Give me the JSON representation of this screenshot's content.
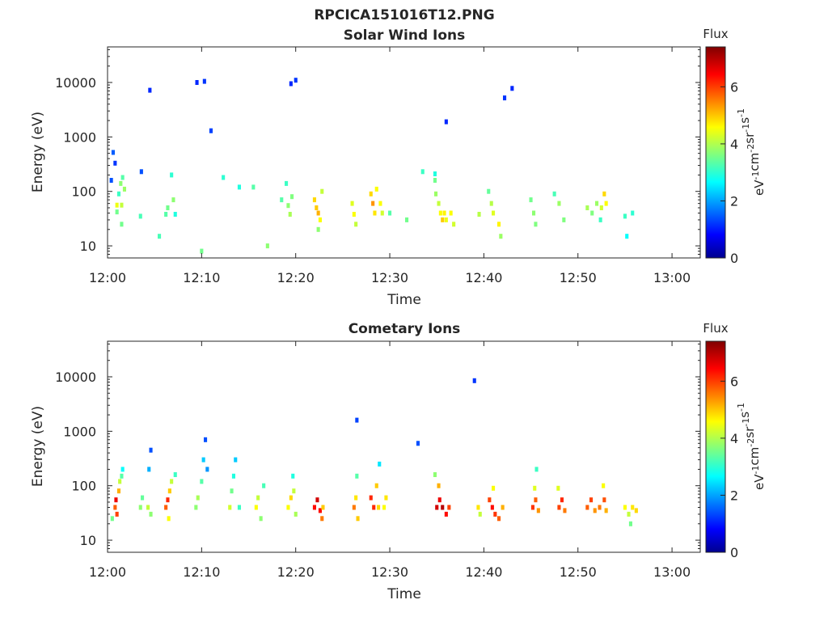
{
  "figure": {
    "title": "RPCICA151016T12.PNG"
  },
  "colorbar": {
    "label": "Flux",
    "unit_base": "eV",
    "unit_parts": [
      {
        "b": "eV",
        "e": "-1"
      },
      {
        "b": "cm",
        "e": "-2"
      },
      {
        "b": "sr",
        "e": "-1"
      },
      {
        "b": "s",
        "e": "-1"
      }
    ],
    "range": [
      0,
      7.4
    ],
    "ticks": [
      "0",
      "2",
      "4",
      "6"
    ],
    "colormap": "jet"
  },
  "chart_data": [
    {
      "type": "heatmap",
      "title": "Solar Wind Ions",
      "xlabel": "Time",
      "ylabel": "Energy (eV)",
      "x_ticks": [
        "12:00",
        "12:10",
        "12:20",
        "12:30",
        "12:40",
        "12:50",
        "13:00"
      ],
      "x_range_min": [
        0,
        63
      ],
      "y_ticks": [
        "10",
        "100",
        "1000",
        "10000"
      ],
      "y_scale": "log",
      "y_range": [
        6,
        45000
      ],
      "cells": [
        [
          1.0,
          56,
          4.5
        ],
        [
          1.0,
          42,
          3.6
        ],
        [
          1.2,
          90,
          3.2
        ],
        [
          1.4,
          140,
          3.8
        ],
        [
          1.5,
          56,
          4.2
        ],
        [
          1.5,
          25,
          3.6
        ],
        [
          1.6,
          180,
          3.4
        ],
        [
          1.8,
          110,
          3.9
        ],
        [
          0.4,
          160,
          1.5
        ],
        [
          0.6,
          520,
          1.6
        ],
        [
          0.8,
          330,
          1.3
        ],
        [
          3.5,
          35,
          3.3
        ],
        [
          3.6,
          230,
          1.5
        ],
        [
          6.2,
          38,
          3.4
        ],
        [
          6.4,
          50,
          3.6
        ],
        [
          6.8,
          200,
          3.1
        ],
        [
          7.0,
          70,
          3.8
        ],
        [
          7.2,
          38,
          3.0
        ],
        [
          5.5,
          15,
          3.3
        ],
        [
          10.0,
          8,
          3.6
        ],
        [
          11.0,
          1300,
          1.4
        ],
        [
          12.3,
          180,
          3.1
        ],
        [
          14.0,
          120,
          3.0
        ],
        [
          15.5,
          120,
          3.4
        ],
        [
          17.0,
          10,
          3.8
        ],
        [
          18.5,
          70,
          3.4
        ],
        [
          19.0,
          140,
          3.2
        ],
        [
          19.2,
          55,
          3.8
        ],
        [
          19.4,
          38,
          4.0
        ],
        [
          19.6,
          80,
          3.7
        ],
        [
          22.0,
          70,
          4.9
        ],
        [
          22.2,
          50,
          5.0
        ],
        [
          22.4,
          40,
          5.2
        ],
        [
          22.6,
          30,
          4.6
        ],
        [
          22.8,
          100,
          4.2
        ],
        [
          22.4,
          20,
          3.8
        ],
        [
          26.0,
          60,
          4.4
        ],
        [
          26.2,
          38,
          4.6
        ],
        [
          26.4,
          25,
          4.2
        ],
        [
          28.0,
          90,
          4.9
        ],
        [
          28.2,
          60,
          5.4
        ],
        [
          28.4,
          40,
          4.8
        ],
        [
          28.6,
          110,
          4.6
        ],
        [
          29.0,
          60,
          4.6
        ],
        [
          29.2,
          40,
          4.3
        ],
        [
          30.0,
          40,
          3.4
        ],
        [
          31.8,
          30,
          3.6
        ],
        [
          34.8,
          160,
          3.6
        ],
        [
          34.9,
          90,
          3.9
        ],
        [
          35.2,
          60,
          4.2
        ],
        [
          35.4,
          40,
          4.6
        ],
        [
          35.6,
          30,
          5.0
        ],
        [
          35.8,
          40,
          4.7
        ],
        [
          36.0,
          30,
          4.5
        ],
        [
          36.5,
          40,
          4.6
        ],
        [
          36.8,
          25,
          4.3
        ],
        [
          39.5,
          38,
          4.1
        ],
        [
          40.5,
          100,
          3.5
        ],
        [
          40.8,
          60,
          4.1
        ],
        [
          41.0,
          40,
          4.4
        ],
        [
          41.6,
          25,
          4.7
        ],
        [
          41.8,
          15,
          3.9
        ],
        [
          45.0,
          70,
          3.6
        ],
        [
          45.3,
          40,
          3.8
        ],
        [
          45.5,
          25,
          3.7
        ],
        [
          47.5,
          90,
          3.3
        ],
        [
          48.0,
          60,
          3.9
        ],
        [
          48.5,
          30,
          3.7
        ],
        [
          51.0,
          50,
          4.0
        ],
        [
          51.5,
          40,
          3.7
        ],
        [
          52.0,
          60,
          3.9
        ],
        [
          52.5,
          50,
          4.3
        ],
        [
          52.8,
          90,
          4.9
        ],
        [
          53.0,
          60,
          4.6
        ],
        [
          52.4,
          30,
          3.2
        ],
        [
          55.0,
          35,
          3.2
        ],
        [
          55.2,
          15,
          2.8
        ],
        [
          55.8,
          40,
          3.1
        ],
        [
          33.5,
          230,
          3.2
        ],
        [
          34.8,
          210,
          3.0
        ],
        [
          4.5,
          7200,
          1.2
        ],
        [
          9.5,
          10000,
          1.2
        ],
        [
          10.3,
          10500,
          1.3
        ],
        [
          19.5,
          9500,
          1.2
        ],
        [
          20.0,
          11000,
          1.3
        ],
        [
          43.0,
          7800,
          1.2
        ],
        [
          42.2,
          5200,
          1.3
        ],
        [
          36.0,
          1900,
          1.2
        ]
      ]
    },
    {
      "type": "heatmap",
      "title": "Cometary Ions",
      "xlabel": "Time",
      "ylabel": "Energy (eV)",
      "x_ticks": [
        "12:00",
        "12:10",
        "12:20",
        "12:30",
        "12:40",
        "12:50",
        "13:00"
      ],
      "x_range_min": [
        0,
        63
      ],
      "y_ticks": [
        "10",
        "100",
        "1000",
        "10000"
      ],
      "y_scale": "log",
      "y_range": [
        6,
        45000
      ],
      "cells": [
        [
          0.8,
          40,
          5.8
        ],
        [
          0.9,
          55,
          6.6
        ],
        [
          1.0,
          30,
          6.0
        ],
        [
          1.2,
          80,
          5.2
        ],
        [
          1.3,
          120,
          4.2
        ],
        [
          1.5,
          150,
          3.4
        ],
        [
          1.6,
          200,
          2.8
        ],
        [
          0.5,
          25,
          3.6
        ],
        [
          3.5,
          40,
          3.8
        ],
        [
          3.7,
          60,
          3.5
        ],
        [
          4.3,
          40,
          4.2
        ],
        [
          4.6,
          30,
          3.8
        ],
        [
          4.4,
          200,
          2.2
        ],
        [
          4.6,
          450,
          1.5
        ],
        [
          6.2,
          40,
          5.8
        ],
        [
          6.4,
          55,
          6.2
        ],
        [
          6.6,
          80,
          5.0
        ],
        [
          6.8,
          120,
          4.2
        ],
        [
          6.5,
          25,
          4.6
        ],
        [
          7.2,
          160,
          3.2
        ],
        [
          9.4,
          40,
          3.8
        ],
        [
          9.6,
          60,
          4.0
        ],
        [
          10.0,
          120,
          3.4
        ],
        [
          10.2,
          300,
          2.4
        ],
        [
          10.4,
          700,
          1.5
        ],
        [
          10.6,
          200,
          2.0
        ],
        [
          13.0,
          40,
          4.3
        ],
        [
          13.2,
          80,
          3.6
        ],
        [
          13.4,
          150,
          3.0
        ],
        [
          13.6,
          300,
          2.4
        ],
        [
          14.0,
          40,
          3.2
        ],
        [
          15.8,
          40,
          4.6
        ],
        [
          16.0,
          60,
          4.2
        ],
        [
          16.3,
          25,
          3.8
        ],
        [
          16.6,
          100,
          3.3
        ],
        [
          19.2,
          40,
          4.6
        ],
        [
          19.5,
          60,
          4.9
        ],
        [
          19.8,
          80,
          4.2
        ],
        [
          20.0,
          30,
          4.0
        ],
        [
          19.7,
          150,
          3.0
        ],
        [
          22.0,
          40,
          6.4
        ],
        [
          22.3,
          55,
          6.8
        ],
        [
          22.6,
          35,
          6.4
        ],
        [
          22.8,
          25,
          5.6
        ],
        [
          22.9,
          40,
          5.0
        ],
        [
          26.2,
          40,
          5.6
        ],
        [
          26.4,
          60,
          4.8
        ],
        [
          26.6,
          25,
          5.0
        ],
        [
          26.5,
          150,
          3.4
        ],
        [
          28.0,
          60,
          6.2
        ],
        [
          28.3,
          40,
          6.2
        ],
        [
          28.6,
          100,
          5.0
        ],
        [
          28.8,
          40,
          4.9
        ],
        [
          28.9,
          250,
          2.6
        ],
        [
          29.4,
          40,
          4.6
        ],
        [
          29.6,
          60,
          4.8
        ],
        [
          35.0,
          40,
          6.8
        ],
        [
          35.3,
          55,
          6.6
        ],
        [
          35.6,
          40,
          7.0
        ],
        [
          36.0,
          30,
          6.4
        ],
        [
          36.3,
          40,
          6.0
        ],
        [
          35.2,
          100,
          5.2
        ],
        [
          34.8,
          160,
          3.8
        ],
        [
          39.4,
          40,
          4.8
        ],
        [
          39.6,
          30,
          4.2
        ],
        [
          40.6,
          55,
          6.0
        ],
        [
          40.9,
          40,
          6.4
        ],
        [
          41.2,
          30,
          6.1
        ],
        [
          41.6,
          25,
          5.8
        ],
        [
          42.0,
          40,
          5.2
        ],
        [
          41.0,
          90,
          4.6
        ],
        [
          45.2,
          40,
          6.1
        ],
        [
          45.5,
          55,
          5.8
        ],
        [
          45.8,
          35,
          5.4
        ],
        [
          45.4,
          90,
          4.4
        ],
        [
          45.6,
          200,
          3.2
        ],
        [
          48.0,
          40,
          6.0
        ],
        [
          48.3,
          55,
          6.2
        ],
        [
          48.6,
          35,
          5.6
        ],
        [
          47.9,
          90,
          4.4
        ],
        [
          51.0,
          40,
          5.8
        ],
        [
          51.4,
          55,
          6.0
        ],
        [
          51.8,
          35,
          5.4
        ],
        [
          52.3,
          40,
          5.6
        ],
        [
          52.8,
          55,
          5.9
        ],
        [
          53.0,
          35,
          5.2
        ],
        [
          52.7,
          100,
          4.6
        ],
        [
          55.0,
          40,
          4.6
        ],
        [
          55.4,
          30,
          4.2
        ],
        [
          55.8,
          40,
          4.8
        ],
        [
          56.2,
          35,
          4.9
        ],
        [
          55.6,
          20,
          3.6
        ],
        [
          39.0,
          8500,
          1.3
        ],
        [
          33.0,
          600,
          1.5
        ],
        [
          26.5,
          1600,
          1.4
        ]
      ]
    }
  ]
}
